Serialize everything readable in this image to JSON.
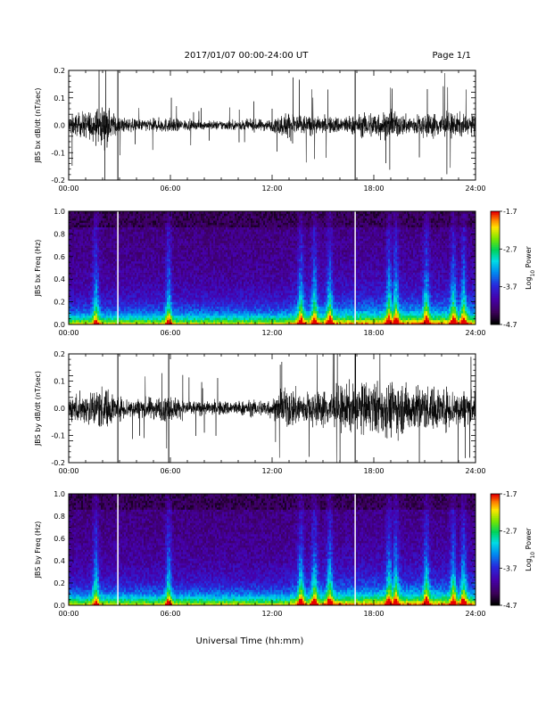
{
  "header": {
    "title": "2017/01/07  00:00-24:00 UT",
    "page": "Page 1/1"
  },
  "footer": {
    "xlabel": "Universal Time (hh:mm)"
  },
  "chart_data": [
    {
      "type": "line",
      "ylabel": "JBS bx dB/dt (nT/sec)",
      "xlim": [
        "00:00",
        "24:00"
      ],
      "ylim": [
        -0.2,
        0.2
      ],
      "x_ticks": [
        "00:00",
        "06:00",
        "12:00",
        "18:00",
        "24:00"
      ],
      "y_ticks": [
        "0.2",
        "0.1",
        "0.0",
        "-0.1",
        "-0.2"
      ],
      "gaps_at_hours": [
        2.9,
        16.9
      ],
      "activity_envelope": {
        "hours": [
          0,
          1,
          2,
          3,
          4,
          5,
          6,
          7,
          8,
          9,
          10,
          11,
          12,
          13,
          14,
          15,
          16,
          17,
          18,
          19,
          20,
          21,
          22,
          23,
          24
        ],
        "amplitude": [
          0.06,
          0.08,
          0.12,
          0.05,
          0.035,
          0.04,
          0.045,
          0.03,
          0.025,
          0.03,
          0.03,
          0.035,
          0.035,
          0.09,
          0.06,
          0.05,
          0.055,
          0.06,
          0.09,
          0.08,
          0.06,
          0.07,
          0.08,
          0.07,
          0.06
        ]
      }
    },
    {
      "type": "heatmap",
      "ylabel": "JBS bx Freq (Hz)",
      "xlim": [
        "00:00",
        "24:00"
      ],
      "ylim": [
        0.0,
        1.0
      ],
      "x_ticks": [
        "00:00",
        "06:00",
        "12:00",
        "18:00",
        "24:00"
      ],
      "y_ticks": [
        "1.0",
        "0.8",
        "0.6",
        "0.4",
        "0.2",
        "0.0"
      ],
      "colorbar": {
        "label": "Log10 Power",
        "label_main": "Log",
        "label_sub": "10",
        "label_rest": " Power",
        "ticks": [
          "-1.7",
          "-2.7",
          "-3.7",
          "-4.7"
        ],
        "range": [
          -4.7,
          -1.7
        ]
      },
      "gaps_at_hours": [
        2.9,
        16.9
      ],
      "burst_hours": [
        1.6,
        5.9,
        13.7,
        14.5,
        15.4,
        18.9,
        19.3,
        21.1,
        22.7,
        23.3
      ]
    },
    {
      "type": "line",
      "ylabel": "JBS by dB/dt (nT/sec)",
      "xlim": [
        "00:00",
        "24:00"
      ],
      "ylim": [
        -0.2,
        0.2
      ],
      "x_ticks": [
        "00:00",
        "06:00",
        "12:00",
        "18:00",
        "24:00"
      ],
      "y_ticks": [
        "0.2",
        "0.1",
        "0.0",
        "-0.1",
        "-0.2"
      ],
      "gaps_at_hours": [
        2.9,
        5.9,
        16.9
      ],
      "activity_envelope": {
        "hours": [
          0,
          1,
          2,
          3,
          4,
          5,
          6,
          7,
          8,
          9,
          10,
          11,
          12,
          13,
          14,
          15,
          16,
          17,
          18,
          19,
          20,
          21,
          22,
          23,
          24
        ],
        "amplitude": [
          0.08,
          0.1,
          0.14,
          0.07,
          0.06,
          0.07,
          0.08,
          0.05,
          0.04,
          0.045,
          0.045,
          0.05,
          0.06,
          0.13,
          0.1,
          0.11,
          0.14,
          0.15,
          0.16,
          0.17,
          0.15,
          0.14,
          0.13,
          0.12,
          0.1
        ]
      }
    },
    {
      "type": "heatmap",
      "ylabel": "JBS by Freq (Hz)",
      "xlim": [
        "00:00",
        "24:00"
      ],
      "ylim": [
        0.0,
        1.0
      ],
      "x_ticks": [
        "00:00",
        "06:00",
        "12:00",
        "18:00",
        "24:00"
      ],
      "y_ticks": [
        "1.0",
        "0.8",
        "0.6",
        "0.4",
        "0.2",
        "0.0"
      ],
      "colorbar": {
        "label": "Log10 Power",
        "label_main": "Log",
        "label_sub": "10",
        "label_rest": " Power",
        "ticks": [
          "-1.7",
          "-2.7",
          "-3.7",
          "-4.7"
        ],
        "range": [
          -4.7,
          -1.7
        ]
      },
      "gaps_at_hours": [
        2.9,
        16.9
      ],
      "burst_hours": [
        1.6,
        5.9,
        13.7,
        14.5,
        15.4,
        18.9,
        19.3,
        21.1,
        22.7,
        23.3
      ]
    }
  ]
}
